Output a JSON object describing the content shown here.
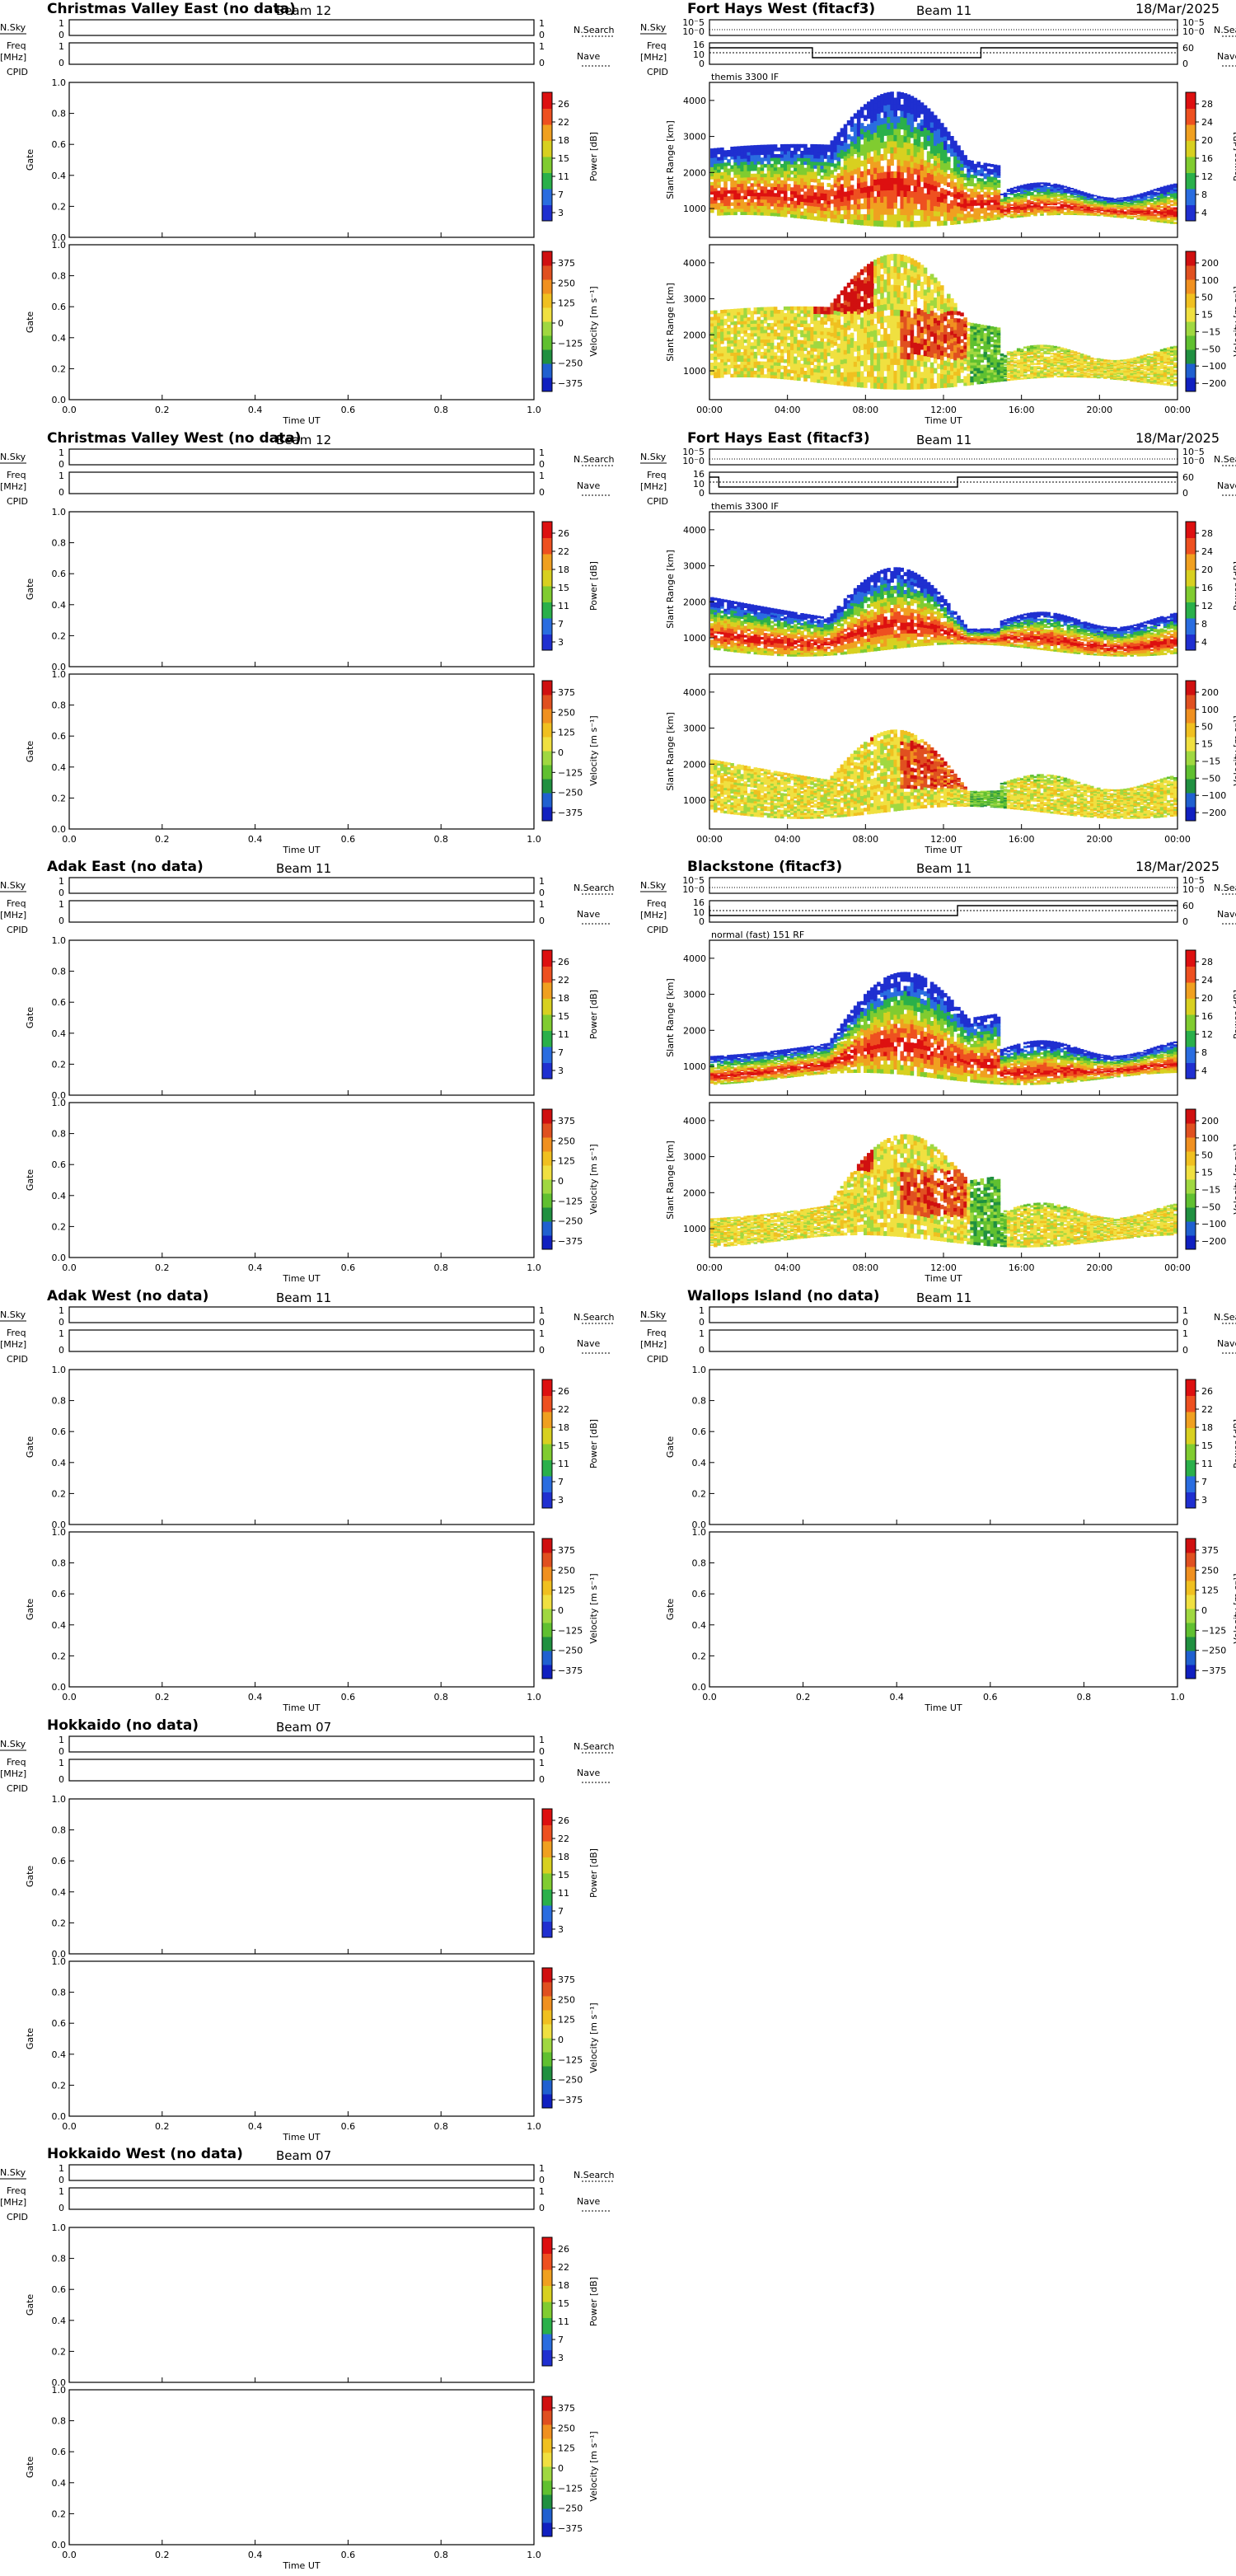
{
  "legend_labels": {
    "nsky": "N.Sky",
    "freq_top": "Freq",
    "freq_bot": "[MHz]",
    "cpid": "CPID",
    "nsearch": "N.Search",
    "nave": "Nave",
    "gate": "Gate",
    "slant": "Slant Range [km]",
    "time_ut": "Time UT",
    "power_label": "Power [dB]",
    "velocity_label": "Velocity [m s⁻¹]"
  },
  "colors": {
    "frame": "#000000",
    "power_scale": [
      "#1f2fd0",
      "#2a6de0",
      "#2ab04a",
      "#80cc30",
      "#d8d020",
      "#f0a020",
      "#ee5020",
      "#dd1010"
    ],
    "velocity_scale": [
      "#1020c0",
      "#2060d0",
      "#209040",
      "#60c030",
      "#a0d840",
      "#f0e040",
      "#f0c020",
      "#f09020",
      "#e05020",
      "#d01010"
    ]
  },
  "chart_data": [
    {
      "type": "heatmap",
      "title": "Christmas Valley East (no data)",
      "beam": "Beam 12",
      "date": "",
      "has_data": false,
      "mode_label": "",
      "power_ticks": [
        "26",
        "22",
        "18",
        "15",
        "11",
        "7",
        "3"
      ],
      "velocity_ticks": [
        "375",
        "250",
        "125",
        "0",
        "−125",
        "−250",
        "−375"
      ],
      "y_ticks": [
        "0.0",
        "0.2",
        "0.4",
        "0.6",
        "0.8",
        "1.0"
      ],
      "x_ticks": [
        "0.0",
        "0.2",
        "0.4",
        "0.6",
        "0.8",
        "1.0"
      ],
      "small_left": [
        "1",
        "0",
        "1",
        "0"
      ],
      "small_right": [
        "1",
        "0",
        "1",
        "0"
      ]
    },
    {
      "type": "heatmap",
      "title": "Fort Hays West (fitacf3)",
      "beam": "Beam 11",
      "date": "18/Mar/2025",
      "has_data": true,
      "mode_label": "themis 3300 IF",
      "power_ticks": [
        "28",
        "24",
        "20",
        "16",
        "12",
        "8",
        "4"
      ],
      "velocity_ticks": [
        "200",
        "100",
        "50",
        "15",
        "−15",
        "−50",
        "−100",
        "−200"
      ],
      "y_ticks": [
        "1000",
        "2000",
        "3000",
        "4000"
      ],
      "ylim": [
        200,
        4500
      ],
      "x_ticks": [
        "00:00",
        "04:00",
        "08:00",
        "12:00",
        "16:00",
        "20:00",
        "00:00"
      ],
      "small_left": [
        "10⁻5",
        "10⁻0",
        "16",
        "10",
        "0"
      ],
      "small_right": [
        "10⁻5",
        "10⁻0",
        "60",
        "0"
      ]
    },
    {
      "type": "heatmap",
      "title": "Christmas Valley West (no data)",
      "beam": "Beam 12",
      "date": "",
      "has_data": false,
      "mode_label": "",
      "power_ticks": [
        "26",
        "22",
        "18",
        "15",
        "11",
        "7",
        "3"
      ],
      "velocity_ticks": [
        "375",
        "250",
        "125",
        "0",
        "−125",
        "−250",
        "−375"
      ],
      "y_ticks": [
        "0.0",
        "0.2",
        "0.4",
        "0.6",
        "0.8",
        "1.0"
      ],
      "x_ticks": [
        "0.0",
        "0.2",
        "0.4",
        "0.6",
        "0.8",
        "1.0"
      ],
      "small_left": [
        "1",
        "0",
        "1",
        "0"
      ],
      "small_right": [
        "1",
        "0",
        "1",
        "0"
      ]
    },
    {
      "type": "heatmap",
      "title": "Fort Hays East (fitacf3)",
      "beam": "Beam 11",
      "date": "18/Mar/2025",
      "has_data": true,
      "mode_label": "themis 3300 IF",
      "power_ticks": [
        "28",
        "24",
        "20",
        "16",
        "12",
        "8",
        "4"
      ],
      "velocity_ticks": [
        "200",
        "100",
        "50",
        "15",
        "−15",
        "−50",
        "−100",
        "−200"
      ],
      "y_ticks": [
        "1000",
        "2000",
        "3000",
        "4000"
      ],
      "ylim": [
        200,
        4500
      ],
      "x_ticks": [
        "00:00",
        "04:00",
        "08:00",
        "12:00",
        "16:00",
        "20:00",
        "00:00"
      ],
      "small_left": [
        "10⁻5",
        "10⁻0",
        "16",
        "10",
        "0"
      ],
      "small_right": [
        "10⁻5",
        "10⁻0",
        "60",
        "0"
      ]
    },
    {
      "type": "heatmap",
      "title": "Adak East (no data)",
      "beam": "Beam 11",
      "date": "",
      "has_data": false,
      "mode_label": "",
      "power_ticks": [
        "26",
        "22",
        "18",
        "15",
        "11",
        "7",
        "3"
      ],
      "velocity_ticks": [
        "375",
        "250",
        "125",
        "0",
        "−125",
        "−250",
        "−375"
      ],
      "y_ticks": [
        "0.0",
        "0.2",
        "0.4",
        "0.6",
        "0.8",
        "1.0"
      ],
      "x_ticks": [
        "0.0",
        "0.2",
        "0.4",
        "0.6",
        "0.8",
        "1.0"
      ],
      "small_left": [
        "1",
        "0",
        "1",
        "0"
      ],
      "small_right": [
        "1",
        "0",
        "1",
        "0"
      ]
    },
    {
      "type": "heatmap",
      "title": "Blackstone (fitacf3)",
      "beam": "Beam 11",
      "date": "18/Mar/2025",
      "has_data": true,
      "mode_label": "normal (fast) 151 RF",
      "power_ticks": [
        "28",
        "24",
        "20",
        "16",
        "12",
        "8",
        "4"
      ],
      "velocity_ticks": [
        "200",
        "100",
        "50",
        "15",
        "−15",
        "−50",
        "−100",
        "−200"
      ],
      "y_ticks": [
        "1000",
        "2000",
        "3000",
        "4000"
      ],
      "ylim": [
        200,
        4500
      ],
      "x_ticks": [
        "00:00",
        "04:00",
        "08:00",
        "12:00",
        "16:00",
        "20:00",
        "00:00"
      ],
      "small_left": [
        "10⁻5",
        "10⁻0",
        "16",
        "10",
        "0"
      ],
      "small_right": [
        "10⁻5",
        "10⁻0",
        "60",
        "0"
      ]
    },
    {
      "type": "heatmap",
      "title": "Adak West (no data)",
      "beam": "Beam 11",
      "date": "",
      "has_data": false,
      "mode_label": "",
      "power_ticks": [
        "26",
        "22",
        "18",
        "15",
        "11",
        "7",
        "3"
      ],
      "velocity_ticks": [
        "375",
        "250",
        "125",
        "0",
        "−125",
        "−250",
        "−375"
      ],
      "y_ticks": [
        "0.0",
        "0.2",
        "0.4",
        "0.6",
        "0.8",
        "1.0"
      ],
      "x_ticks": [
        "0.0",
        "0.2",
        "0.4",
        "0.6",
        "0.8",
        "1.0"
      ],
      "small_left": [
        "1",
        "0",
        "1",
        "0"
      ],
      "small_right": [
        "1",
        "0",
        "1",
        "0"
      ]
    },
    {
      "type": "heatmap",
      "title": "Wallops Island (no data)",
      "beam": "Beam 11",
      "date": "",
      "has_data": false,
      "mode_label": "",
      "power_ticks": [
        "26",
        "22",
        "18",
        "15",
        "11",
        "7",
        "3"
      ],
      "velocity_ticks": [
        "375",
        "250",
        "125",
        "0",
        "−125",
        "−250",
        "−375"
      ],
      "y_ticks": [
        "0.0",
        "0.2",
        "0.4",
        "0.6",
        "0.8",
        "1.0"
      ],
      "x_ticks": [
        "0.0",
        "0.2",
        "0.4",
        "0.6",
        "0.8",
        "1.0"
      ],
      "small_left": [
        "1",
        "0",
        "1",
        "0"
      ],
      "small_right": [
        "1",
        "0",
        "1",
        "0"
      ]
    },
    {
      "type": "heatmap",
      "title": "Hokkaido (no data)",
      "beam": "Beam 07",
      "date": "",
      "has_data": false,
      "mode_label": "",
      "power_ticks": [
        "26",
        "22",
        "18",
        "15",
        "11",
        "7",
        "3"
      ],
      "velocity_ticks": [
        "375",
        "250",
        "125",
        "0",
        "−125",
        "−250",
        "−375"
      ],
      "y_ticks": [
        "0.0",
        "0.2",
        "0.4",
        "0.6",
        "0.8",
        "1.0"
      ],
      "x_ticks": [
        "0.0",
        "0.2",
        "0.4",
        "0.6",
        "0.8",
        "1.0"
      ],
      "small_left": [
        "1",
        "0",
        "1",
        "0"
      ],
      "small_right": [
        "1",
        "0",
        "1",
        "0"
      ]
    },
    {
      "type": "heatmap",
      "title": "Hokkaido West (no data)",
      "beam": "Beam 07",
      "date": "",
      "has_data": false,
      "mode_label": "",
      "power_ticks": [
        "26",
        "22",
        "18",
        "15",
        "11",
        "7",
        "3"
      ],
      "velocity_ticks": [
        "375",
        "250",
        "125",
        "0",
        "−125",
        "−250",
        "−375"
      ],
      "y_ticks": [
        "0.0",
        "0.2",
        "0.4",
        "0.6",
        "0.8",
        "1.0"
      ],
      "x_ticks": [
        "0.0",
        "0.2",
        "0.4",
        "0.6",
        "0.8",
        "1.0"
      ],
      "small_left": [
        "1",
        "0",
        "1",
        "0"
      ],
      "small_right": [
        "1",
        "0",
        "1",
        "0"
      ]
    }
  ]
}
